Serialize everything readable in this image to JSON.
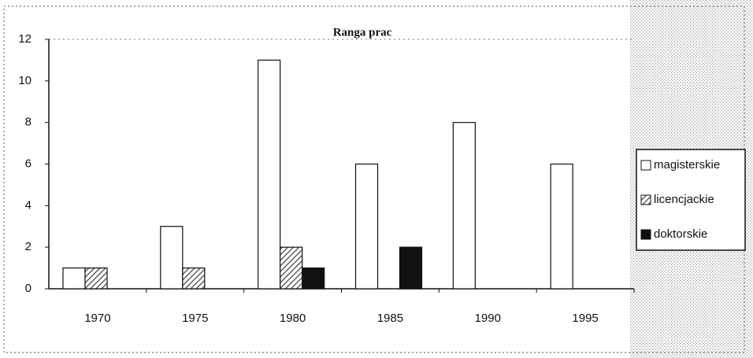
{
  "chart_data": {
    "type": "bar",
    "title": "Ranga prac",
    "categories": [
      "1970",
      "1975",
      "1980",
      "1985",
      "1990",
      "1995"
    ],
    "series": [
      {
        "name": "magisterskie",
        "color": "#ffffff",
        "values": [
          1,
          3,
          11,
          6,
          8,
          6
        ]
      },
      {
        "name": "licencjackie",
        "color": "#555555",
        "hatch": true,
        "values": [
          1,
          1,
          2,
          0,
          0,
          0
        ]
      },
      {
        "name": "doktorskie",
        "color": "#111111",
        "values": [
          0,
          0,
          1,
          2,
          0,
          0
        ]
      }
    ],
    "ylim": [
      0,
      12
    ],
    "yticks": [
      0,
      2,
      4,
      6,
      8,
      10,
      12
    ],
    "grid": false,
    "legend": "right"
  }
}
